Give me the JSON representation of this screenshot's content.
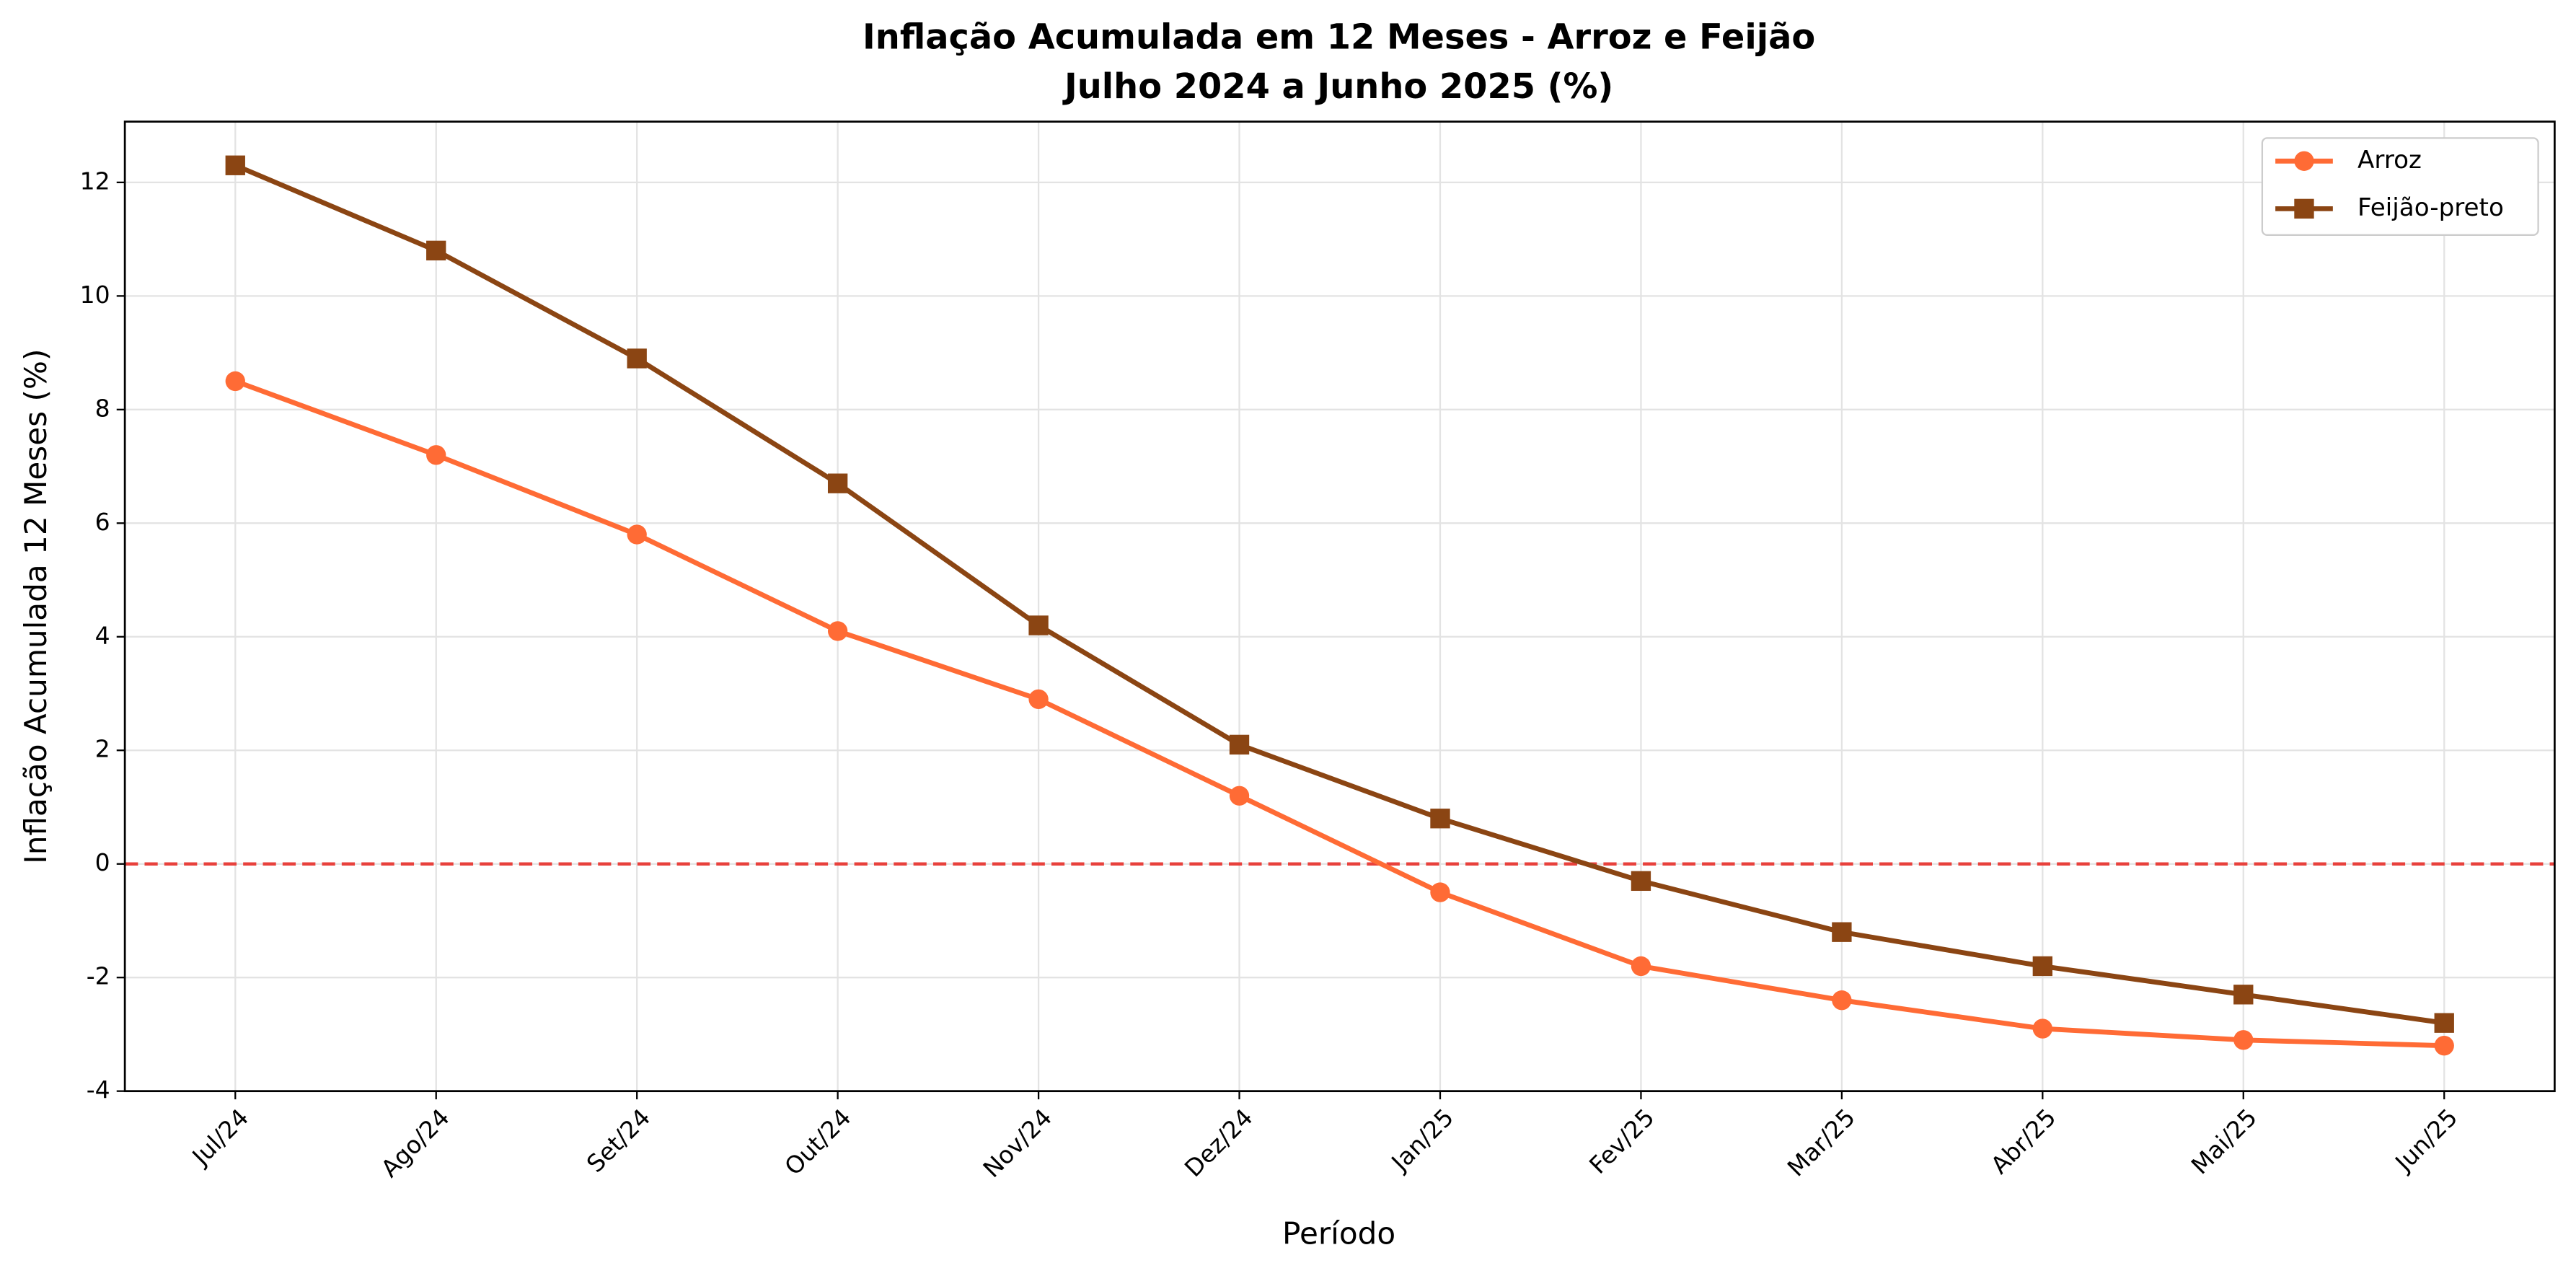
{
  "chart_data": {
    "type": "line",
    "title": "Inflação Acumulada em 12 Meses - Arroz e Feijão",
    "subtitle": "Julho 2024 a Junho 2025 (%)",
    "x_label": "Período",
    "y_label": "Inflação Acumulada 12 Meses (%)",
    "categories": [
      "Jul/24",
      "Ago/24",
      "Set/24",
      "Out/24",
      "Nov/24",
      "Dez/24",
      "Jan/25",
      "Fev/25",
      "Mar/25",
      "Abr/25",
      "Mai/25",
      "Jun/25"
    ],
    "series": [
      {
        "name": "Arroz",
        "color": "#ff6b35",
        "marker": "circle",
        "values": [
          8.5,
          7.2,
          5.8,
          4.1,
          2.9,
          1.2,
          -0.5,
          -1.8,
          -2.4,
          -2.9,
          -3.1,
          -3.2
        ]
      },
      {
        "name": "Feijão-preto",
        "color": "#8b4513",
        "marker": "square",
        "values": [
          12.3,
          10.8,
          8.9,
          6.7,
          4.2,
          2.1,
          0.8,
          -0.3,
          -1.2,
          -1.8,
          -2.3,
          -2.8
        ]
      }
    ],
    "reference_line": {
      "value": 0,
      "color": "#e8413c"
    },
    "ylim": [
      -4,
      13.07
    ],
    "yticks": [
      -4,
      -2,
      0,
      2,
      4,
      6,
      8,
      10,
      12
    ],
    "grid": true,
    "legend": "upper right"
  }
}
